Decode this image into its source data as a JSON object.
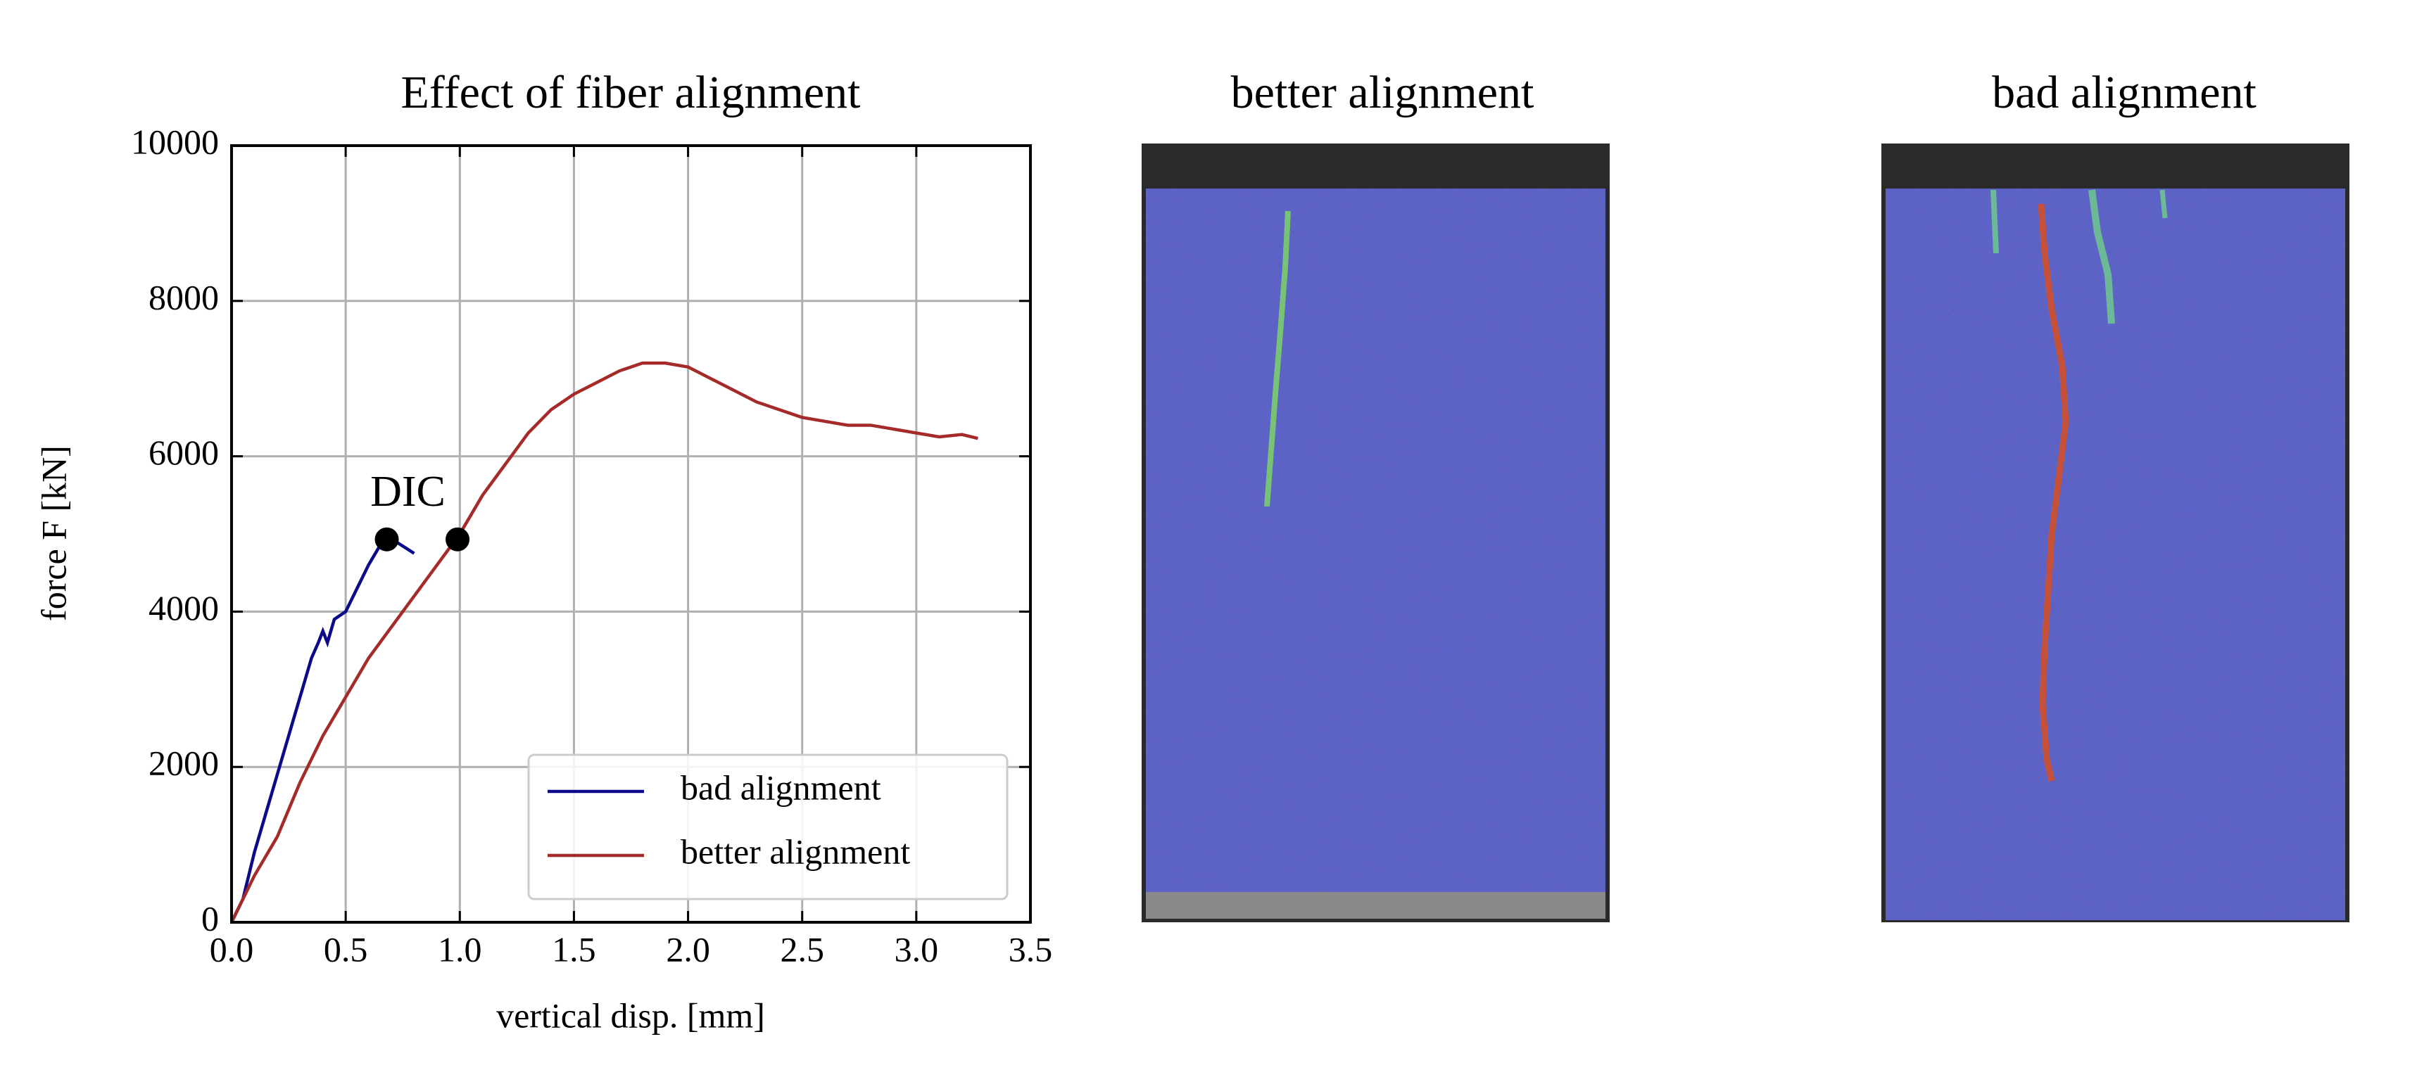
{
  "chart_data": {
    "type": "line",
    "title": "Effect of fiber alignment",
    "xlabel": "vertical disp. [mm]",
    "ylabel": "force F [kN]",
    "xlim": [
      0,
      3.5
    ],
    "ylim": [
      0,
      10000
    ],
    "xticks": [
      {
        "value": 0,
        "label": "0.0"
      },
      0.5,
      {
        "value": 1,
        "label": "1.0"
      },
      1.5,
      {
        "value": 2,
        "label": "2.0"
      },
      2.5,
      {
        "value": 3,
        "label": "3.0"
      },
      3.5
    ],
    "yticks": [
      0,
      2000,
      4000,
      6000,
      8000,
      10000
    ],
    "grid": true,
    "legend": "lower right",
    "series": [
      {
        "name": "bad alignment",
        "color": "#0b0b8a",
        "x": [
          0,
          0.05,
          0.1,
          0.2,
          0.3,
          0.35,
          0.38,
          0.4,
          0.42,
          0.45,
          0.5,
          0.55,
          0.6,
          0.65,
          0.68,
          0.72,
          0.8
        ],
        "values": [
          0,
          300,
          900,
          1900,
          2900,
          3400,
          3600,
          3750,
          3600,
          3900,
          4000,
          4300,
          4600,
          4850,
          4950,
          4900,
          4750
        ]
      },
      {
        "name": "better alignment",
        "color": "#a52a2a",
        "x": [
          0,
          0.05,
          0.1,
          0.2,
          0.3,
          0.4,
          0.5,
          0.6,
          0.7,
          0.8,
          0.9,
          1.0,
          1.1,
          1.2,
          1.3,
          1.4,
          1.5,
          1.6,
          1.7,
          1.8,
          1.9,
          2.0,
          2.1,
          2.2,
          2.3,
          2.4,
          2.5,
          2.6,
          2.7,
          2.8,
          2.9,
          3.0,
          3.1,
          3.2,
          3.27
        ],
        "values": [
          0,
          300,
          600,
          1100,
          1800,
          2400,
          2900,
          3400,
          3800,
          4200,
          4600,
          5000,
          5500,
          5900,
          6300,
          6600,
          6800,
          6950,
          7100,
          7200,
          7200,
          7150,
          7000,
          6850,
          6700,
          6600,
          6500,
          6450,
          6400,
          6400,
          6350,
          6300,
          6250,
          6280,
          6230
        ]
      }
    ],
    "markers": {
      "x": [
        0.68,
        0.99
      ],
      "values": [
        4930,
        4930
      ]
    },
    "annotation": "DIC"
  },
  "panels": [
    {
      "title": "better alignment"
    },
    {
      "title": "bad alignment"
    }
  ]
}
